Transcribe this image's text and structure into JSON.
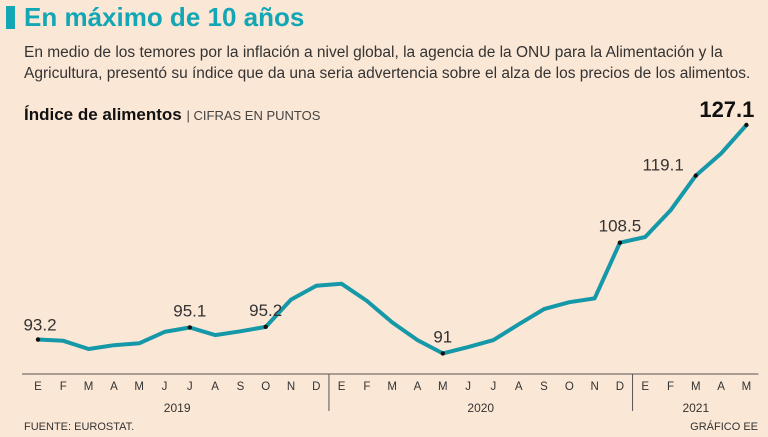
{
  "header": {
    "title": "En máximo de 10 años",
    "subtitle": "En medio de los temores por la inflación a nivel global, la agencia de la ONU para la Alimentación y la Agricultura, presentó su índice que da una seria advertencia sobre el alza de los precios de los alimentos."
  },
  "chart_heading": {
    "title": "Índice de alimentos",
    "units": "CIFRAS EN PUNTOS"
  },
  "footer": {
    "source": "FUENTE: EUROSTAT.",
    "credit": "GRÁFICO EE"
  },
  "colors": {
    "line": "#1598a8",
    "title": "#13a6b5",
    "background": "#fbe7d5"
  },
  "chart_data": {
    "type": "line",
    "title": "Índice de alimentos",
    "ylabel": "Cifras en puntos",
    "ylim": [
      88,
      128
    ],
    "categories": [
      "E",
      "F",
      "M",
      "A",
      "M",
      "J",
      "J",
      "A",
      "S",
      "O",
      "N",
      "D",
      "E",
      "F",
      "M",
      "A",
      "M",
      "J",
      "J",
      "A",
      "S",
      "O",
      "N",
      "D",
      "E",
      "F",
      "M",
      "A",
      "M"
    ],
    "years": [
      {
        "label": "2019",
        "start": 0,
        "end": 11
      },
      {
        "label": "2020",
        "start": 12,
        "end": 23
      },
      {
        "label": "2021",
        "start": 24,
        "end": 28
      }
    ],
    "series": [
      {
        "name": "Índice de alimentos",
        "values": [
          93.2,
          93.0,
          91.7,
          92.3,
          92.6,
          94.4,
          95.1,
          93.9,
          94.5,
          95.2,
          99.5,
          101.7,
          102.0,
          99.3,
          95.9,
          93.1,
          91.0,
          92.0,
          93.1,
          95.6,
          98.0,
          99.1,
          99.7,
          108.5,
          109.4,
          113.6,
          119.1,
          122.6,
          127.1
        ]
      }
    ],
    "annotations": [
      {
        "index": 0,
        "label": "93.2"
      },
      {
        "index": 6,
        "label": "95.1"
      },
      {
        "index": 9,
        "label": "95.2"
      },
      {
        "index": 16,
        "label": "91"
      },
      {
        "index": 23,
        "label": "108.5"
      },
      {
        "index": 26,
        "label": "119.1"
      },
      {
        "index": 28,
        "label": "127.1",
        "emphasis": true
      }
    ]
  }
}
